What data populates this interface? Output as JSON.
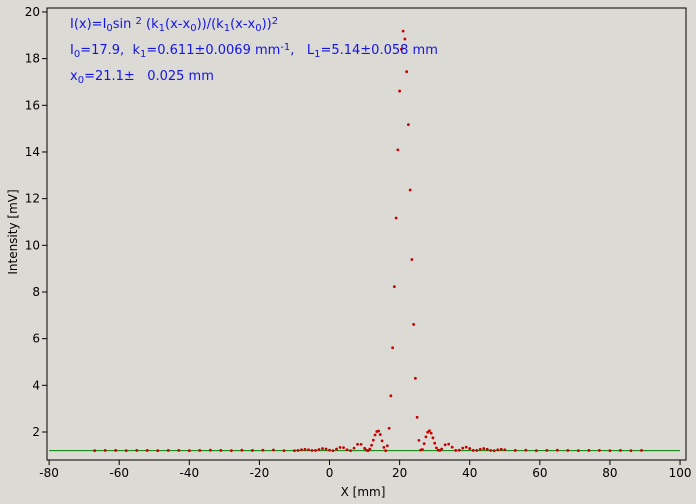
{
  "chart_data": {
    "type": "scatter",
    "x_label": "X [mm]",
    "y_label": "Intensity [mV]",
    "annotations": [
      [
        "I(x)=I",
        {
          "sub": "0"
        },
        "sin ",
        {
          "sup": "2"
        },
        " (k",
        {
          "sub": "1"
        },
        "(x-x",
        {
          "sub": "0"
        },
        "))/(k",
        {
          "sub": "1"
        },
        "(x-x",
        {
          "sub": "0"
        },
        "))",
        {
          "sup": "2"
        }
      ],
      [
        "I",
        {
          "sub": "0"
        },
        "=17.9,  k",
        {
          "sub": "1"
        },
        "=0.611±0.0069 mm",
        {
          "sup": "-1"
        },
        ",   L",
        {
          "sub": "1"
        },
        "=5.14±0.058 mm"
      ],
      [
        "x",
        {
          "sub": "0"
        },
        "=21.1±   0.025 mm"
      ]
    ],
    "annotation_color": "#1414e6",
    "xlim": [
      -80.6,
      101.7
    ],
    "ylim": [
      0.8,
      20.17
    ],
    "xticks": [
      -80,
      -60,
      -40,
      -20,
      0,
      20,
      40,
      60,
      80,
      100
    ],
    "yticks": [
      2,
      4,
      6,
      8,
      10,
      12,
      14,
      16,
      18,
      20
    ],
    "series": [
      {
        "color": "#008000",
        "marker": "line",
        "x": [
          -80,
          100
        ],
        "values": [
          1.2,
          1.2
        ]
      },
      {
        "color": "#c40000",
        "marker": "dot",
        "x": [
          -67,
          -64,
          -61,
          -58,
          -55,
          -52,
          -49,
          -46,
          -43,
          -40,
          -37,
          -34,
          -31,
          -28,
          -25,
          -22,
          -19,
          -16,
          -13,
          -10,
          -9,
          -8,
          -7,
          -6,
          -5,
          -4,
          -3,
          -2,
          -1,
          0,
          1,
          2,
          3,
          4,
          5,
          6,
          7,
          8,
          9,
          10,
          10.5,
          11,
          11.5,
          12,
          12.5,
          13,
          13.5,
          14,
          14.5,
          15,
          15.5,
          16,
          16.5,
          17,
          17.5,
          18,
          18.5,
          19,
          19.5,
          20,
          20.5,
          21,
          21.5,
          22,
          22.5,
          23,
          23.5,
          24,
          24.5,
          25,
          25.5,
          26,
          26.5,
          27,
          27.5,
          28,
          28.5,
          29,
          29.5,
          30,
          30.5,
          31,
          31.5,
          32,
          33,
          34,
          35,
          36,
          37,
          38,
          39,
          40,
          41,
          42,
          43,
          44,
          45,
          46,
          47,
          48,
          49,
          50,
          53,
          56,
          59,
          62,
          65,
          68,
          71,
          74,
          77,
          80,
          83,
          86,
          89
        ],
        "values": [
          1.2,
          1.21,
          1.21,
          1.2,
          1.21,
          1.21,
          1.2,
          1.21,
          1.21,
          1.2,
          1.21,
          1.22,
          1.21,
          1.2,
          1.22,
          1.21,
          1.22,
          1.23,
          1.2,
          1.2,
          1.21,
          1.24,
          1.26,
          1.24,
          1.21,
          1.21,
          1.25,
          1.29,
          1.27,
          1.22,
          1.2,
          1.27,
          1.34,
          1.33,
          1.24,
          1.2,
          1.31,
          1.47,
          1.47,
          1.3,
          1.22,
          1.2,
          1.27,
          1.43,
          1.65,
          1.87,
          2.02,
          2.04,
          1.89,
          1.62,
          1.34,
          1.2,
          1.41,
          2.16,
          3.55,
          5.61,
          8.23,
          11.17,
          14.09,
          16.61,
          18.4,
          19.18,
          18.84,
          17.44,
          15.17,
          12.37,
          9.39,
          6.61,
          4.3,
          2.63,
          1.64,
          1.23,
          1.25,
          1.5,
          1.79,
          1.99,
          2.05,
          1.95,
          1.75,
          1.52,
          1.32,
          1.22,
          1.21,
          1.27,
          1.45,
          1.48,
          1.35,
          1.21,
          1.22,
          1.31,
          1.35,
          1.29,
          1.21,
          1.21,
          1.26,
          1.29,
          1.26,
          1.21,
          1.2,
          1.24,
          1.26,
          1.24,
          1.21,
          1.22,
          1.2,
          1.21,
          1.22,
          1.21,
          1.2,
          1.21,
          1.21,
          1.2,
          1.21,
          1.2,
          1.21
        ]
      }
    ]
  }
}
